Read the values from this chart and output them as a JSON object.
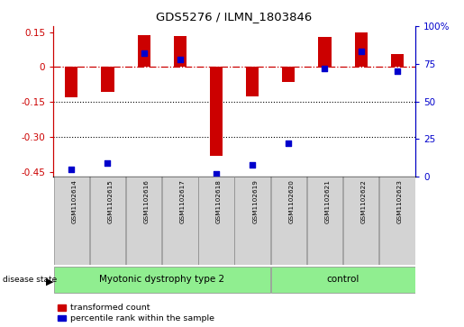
{
  "title": "GDS5276 / ILMN_1803846",
  "samples": [
    "GSM1102614",
    "GSM1102615",
    "GSM1102616",
    "GSM1102617",
    "GSM1102618",
    "GSM1102619",
    "GSM1102620",
    "GSM1102621",
    "GSM1102622",
    "GSM1102623"
  ],
  "transformed_count": [
    -0.13,
    -0.105,
    0.135,
    0.133,
    -0.38,
    -0.125,
    -0.065,
    0.13,
    0.148,
    0.055
  ],
  "percentile_rank": [
    5,
    9,
    82,
    78,
    2,
    8,
    22,
    72,
    83,
    70
  ],
  "disease_groups": [
    {
      "label": "Myotonic dystrophy type 2",
      "start": 0,
      "end": 6,
      "color": "#90ee90"
    },
    {
      "label": "control",
      "start": 6,
      "end": 10,
      "color": "#90ee90"
    }
  ],
  "bar_color": "#cc0000",
  "dot_color": "#0000cc",
  "ylim_left": [
    -0.47,
    0.175
  ],
  "ylim_right": [
    0,
    100
  ],
  "yticks_left": [
    -0.45,
    -0.3,
    -0.15,
    0,
    0.15
  ],
  "yticks_right": [
    0,
    25,
    50,
    75,
    100
  ],
  "zero_line_color": "#cc0000",
  "grid_dotted_levels": [
    -0.15,
    -0.3
  ],
  "background_color": "#ffffff",
  "plot_bg_color": "#ffffff",
  "legend_labels": [
    "transformed count",
    "percentile rank within the sample"
  ],
  "bar_width": 0.35
}
